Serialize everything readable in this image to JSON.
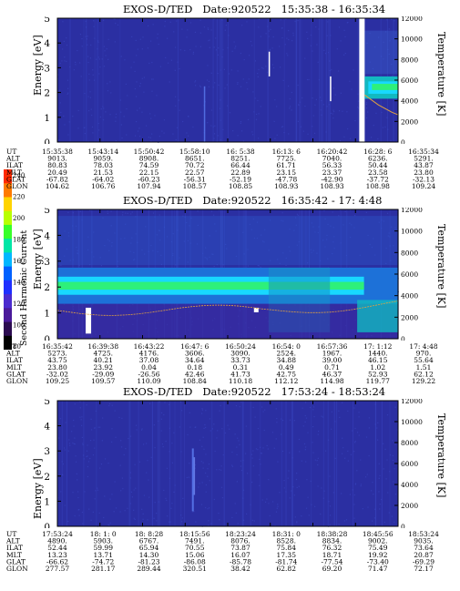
{
  "colors": {
    "background": "#2b2fa2",
    "noise_light": "#3a47c2",
    "band_cyan": "#18d8ff",
    "band_green": "#2ef07a",
    "band_teal": "#12b9c0",
    "temp_line": "#e0a040",
    "white_marks": "#ffffff"
  },
  "colorbar": {
    "label": "Second Harmonic Current",
    "ticks": [
      "240",
      "220",
      "200",
      "180",
      "160",
      "140",
      "120",
      "100",
      "80"
    ],
    "colors": [
      "#ff2a00",
      "#ff7b00",
      "#ffd400",
      "#b8ff00",
      "#38ff2a",
      "#00e6a6",
      "#00b7ff",
      "#0061ff",
      "#1f2fff",
      "#4b2bcf",
      "#4a1a9a",
      "#2b0b50",
      "#000000"
    ]
  },
  "chart_data": [
    {
      "type": "heatmap",
      "title": "EXOS-D/TED   Date:920522   15:35:38 - 16:35:34",
      "ylabel": "Energy [eV]",
      "ylabel_right": "Temperature [K]",
      "ylim": [
        0,
        5
      ],
      "yticks": [
        "0",
        "1",
        "2",
        "3",
        "4",
        "5"
      ],
      "y2lim": [
        0,
        12000
      ],
      "y2ticks": [
        "0",
        "2000",
        "4000",
        "6000",
        "8000",
        "10000",
        "12000"
      ],
      "features": [
        "datagap-15:35-16:28",
        "band-right-2eV"
      ],
      "ephemeris": [
        {
          "label": "UT",
          "values": [
            "15:35:38",
            "15:43:14",
            "15:50:42",
            "15:58:10",
            "16: 5:38",
            "16:13: 6",
            "16:20:42",
            "16:28: 6",
            "16:35:34"
          ]
        },
        {
          "label": "ALT",
          "values": [
            "9013.",
            "9059.",
            "8908.",
            "8651.",
            "8251.",
            "7725.",
            "7040.",
            "6236.",
            "5291."
          ]
        },
        {
          "label": "ILAT",
          "values": [
            "80.83",
            "78.03",
            "74.59",
            "70.72",
            "66.44",
            "61.71",
            "56.33",
            "50.44",
            "43.87"
          ]
        },
        {
          "label": "MLT",
          "values": [
            "20.49",
            "21.53",
            "22.15",
            "22.57",
            "22.89",
            "23.15",
            "23.37",
            "23.58",
            "23.80"
          ]
        },
        {
          "label": "GLAT",
          "values": [
            "-67.82",
            "-64.02",
            "-60.23",
            "-56.31",
            "-52.19",
            "-47.78",
            "-42.90",
            "-37.72",
            "-32.13"
          ]
        },
        {
          "label": "GLON",
          "values": [
            "104.62",
            "106.76",
            "107.94",
            "108.57",
            "108.85",
            "108.93",
            "108.93",
            "108.98",
            "109.24"
          ]
        }
      ]
    },
    {
      "type": "heatmap",
      "title": "EXOS-D/TED   Date:920522   16:35:42 - 17: 4:48",
      "ylabel": "Energy [eV]",
      "ylabel_right": "Temperature [K]",
      "ylim": [
        0,
        5
      ],
      "yticks": [
        "0",
        "1",
        "2",
        "3",
        "4",
        "5"
      ],
      "y2lim": [
        0,
        12000
      ],
      "y2ticks": [
        "0",
        "2000",
        "4000",
        "6000",
        "8000",
        "10000",
        "12000"
      ],
      "ephemeris": [
        {
          "label": "UT",
          "values": [
            "16:35:42",
            "16:39:38",
            "16:43:22",
            "16:47: 6",
            "16:50:24",
            "16:54: 0",
            "16:57:36",
            "17: 1:12",
            "17: 4:48"
          ]
        },
        {
          "label": "ALT",
          "values": [
            "5273.",
            "4725.",
            "4176.",
            "3606.",
            "3090.",
            "2524.",
            "1967.",
            "1440.",
            "970."
          ]
        },
        {
          "label": "ILAT",
          "values": [
            "43.75",
            "40.21",
            "37.08",
            "34.64",
            "33.73",
            "34.88",
            "39.00",
            "46.15",
            "55.64"
          ]
        },
        {
          "label": "MLT",
          "values": [
            "23.80",
            "23.92",
            "0.04",
            "0.18",
            "0.31",
            "0.49",
            "0.71",
            "1.02",
            "1.51"
          ]
        },
        {
          "label": "GLAT",
          "values": [
            "-32.02",
            "-29.09",
            "-26.56",
            "42.46",
            "41.73",
            "42.75",
            "46.37",
            "52.93",
            "62.12"
          ]
        },
        {
          "label": "GLON",
          "values": [
            "109.25",
            "109.57",
            "110.09",
            "108.84",
            "110.18",
            "112.12",
            "114.98",
            "119.77",
            "129.22"
          ]
        }
      ]
    },
    {
      "type": "heatmap",
      "title": "EXOS-D/TED   Date:920522   17:53:24 - 18:53:24",
      "ylabel": "Energy [eV]",
      "ylabel_right": "Temperature [K]",
      "ylim": [
        0,
        5
      ],
      "yticks": [
        "0",
        "1",
        "2",
        "3",
        "4",
        "5"
      ],
      "y2lim": [
        0,
        12000
      ],
      "y2ticks": [
        "0",
        "2000",
        "4000",
        "6000",
        "8000",
        "10000",
        "12000"
      ],
      "ephemeris": [
        {
          "label": "UT",
          "values": [
            "17:53:24",
            "18: 1: 0",
            "18: 8:28",
            "18:15:56",
            "18:23:24",
            "18:31: 0",
            "18:38:28",
            "18:45:56",
            "18:53:24"
          ]
        },
        {
          "label": "ALT",
          "values": [
            "4890.",
            "5903.",
            "6767.",
            "7491.",
            "8076.",
            "8528.",
            "8834.",
            "9002.",
            "9035."
          ]
        },
        {
          "label": "ILAT",
          "values": [
            "52.44",
            "59.99",
            "65.94",
            "70.55",
            "73.87",
            "75.84",
            "76.32",
            "75.49",
            "73.64"
          ]
        },
        {
          "label": "MLT",
          "values": [
            "13.23",
            "13.71",
            "14.30",
            "15.06",
            "16.07",
            "17.35",
            "18.71",
            "19.92",
            "20.87"
          ]
        },
        {
          "label": "GLAT",
          "values": [
            "-66.62",
            "-74.72",
            "-81.23",
            "-86.08",
            "-85.78",
            "-81.74",
            "-77.54",
            "-73.40",
            "-69.29"
          ]
        },
        {
          "label": "GLON",
          "values": [
            "277.57",
            "281.17",
            "289.44",
            "320.51",
            "38.42",
            "62.82",
            "69.20",
            "71.47",
            "72.17"
          ]
        }
      ]
    }
  ]
}
